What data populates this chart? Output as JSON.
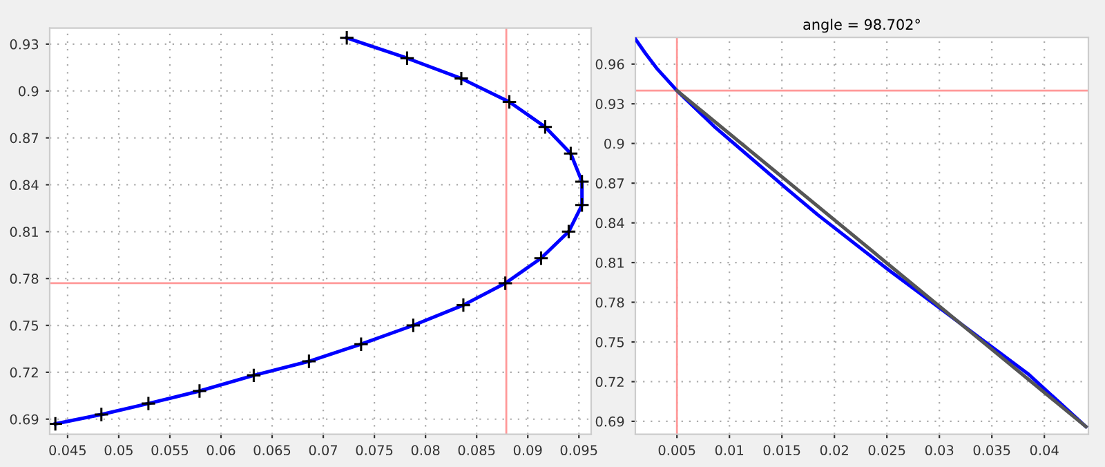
{
  "chart_data": [
    {
      "type": "line",
      "x": [
        0.0723,
        0.0782,
        0.0835,
        0.0882,
        0.0917,
        0.0942,
        0.0953,
        0.0953,
        0.094,
        0.0913,
        0.0878,
        0.0837,
        0.0788,
        0.0737,
        0.0686,
        0.0632,
        0.0579,
        0.0529,
        0.0483,
        0.0438
      ],
      "series": [
        {
          "color": "#0000ff",
          "values": [
            0.934,
            0.921,
            0.908,
            0.893,
            0.877,
            0.86,
            0.842,
            0.827,
            0.81,
            0.793,
            0.777,
            0.763,
            0.75,
            0.738,
            0.727,
            0.718,
            0.708,
            0.7,
            0.693,
            0.687
          ]
        }
      ],
      "marker": "cross",
      "line_style": "solid",
      "xlim": [
        0.04325,
        0.0962
      ],
      "ylim": [
        0.6803,
        0.9403
      ],
      "xticks": [
        0.045,
        0.05,
        0.055,
        0.06,
        0.065,
        0.07,
        0.075,
        0.08,
        0.085,
        0.09,
        0.095
      ],
      "yticks": [
        0.69,
        0.72,
        0.75,
        0.78,
        0.81,
        0.84,
        0.87,
        0.9,
        0.93
      ],
      "grid": true,
      "ref_lines": [
        {
          "axis": "x",
          "value": 0.0879,
          "color": "#ff9999"
        },
        {
          "axis": "y",
          "value": 0.777,
          "color": "#ff9999"
        }
      ]
    },
    {
      "type": "line",
      "title": "angle = 98.702°",
      "series": [
        {
          "color": "#0000ff",
          "x": [
            0.00104,
            0.00148,
            0.00201,
            0.00316,
            0.005,
            0.00853,
            0.01543,
            0.01843,
            0.02523,
            0.02963,
            0.03403,
            0.03843,
            0.04396
          ],
          "values": [
            0.979,
            0.974,
            0.968,
            0.956,
            0.94,
            0.913,
            0.866,
            0.846,
            0.804,
            0.778,
            0.752,
            0.726,
            0.686
          ]
        },
        {
          "color": "#555555",
          "x": [
            0.005,
            0.04396
          ],
          "values": [
            0.94,
            0.686
          ]
        }
      ],
      "line_style": "solid",
      "xlim": [
        0.00104,
        0.0442
      ],
      "ylim": [
        0.6802,
        0.9802
      ],
      "xticks": [
        0.005,
        0.01,
        0.015,
        0.02,
        0.025,
        0.03,
        0.035,
        0.04
      ],
      "yticks": [
        0.69,
        0.72,
        0.75,
        0.78,
        0.81,
        0.84,
        0.87,
        0.9,
        0.93,
        0.96
      ],
      "grid": true,
      "ref_lines": [
        {
          "axis": "x",
          "value": 0.005,
          "color": "#ff9999"
        },
        {
          "axis": "y",
          "value": 0.94,
          "color": "#ff9999"
        }
      ]
    }
  ]
}
